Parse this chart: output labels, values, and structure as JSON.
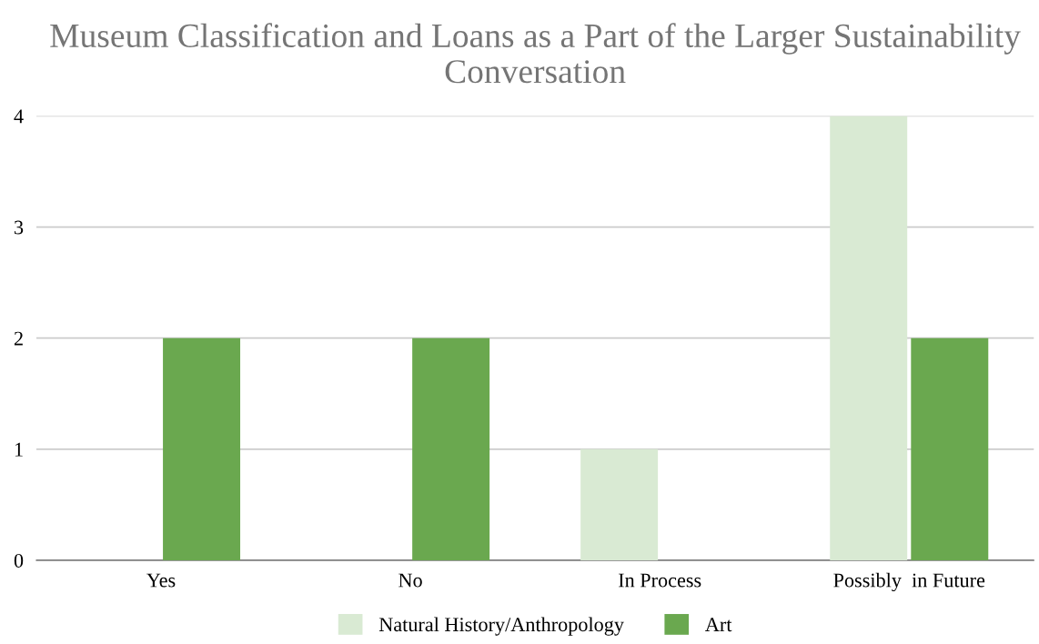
{
  "chart_data": {
    "type": "bar",
    "title": "Museum Classification and Loans as a Part of the Larger Sustainability Conversation",
    "categories": [
      "Yes",
      "No",
      "In Process",
      "Possibly  in Future"
    ],
    "series": [
      {
        "name": "Natural History/Anthropology",
        "color": "#d9ead3",
        "values": [
          0,
          0,
          1,
          4
        ]
      },
      {
        "name": "Art",
        "color": "#6aa84f",
        "values": [
          2,
          2,
          0,
          2
        ]
      }
    ],
    "ylim": [
      0,
      4
    ],
    "yticks": [
      0,
      1,
      2,
      3,
      4
    ],
    "grid": "y",
    "legend": "bottom"
  }
}
